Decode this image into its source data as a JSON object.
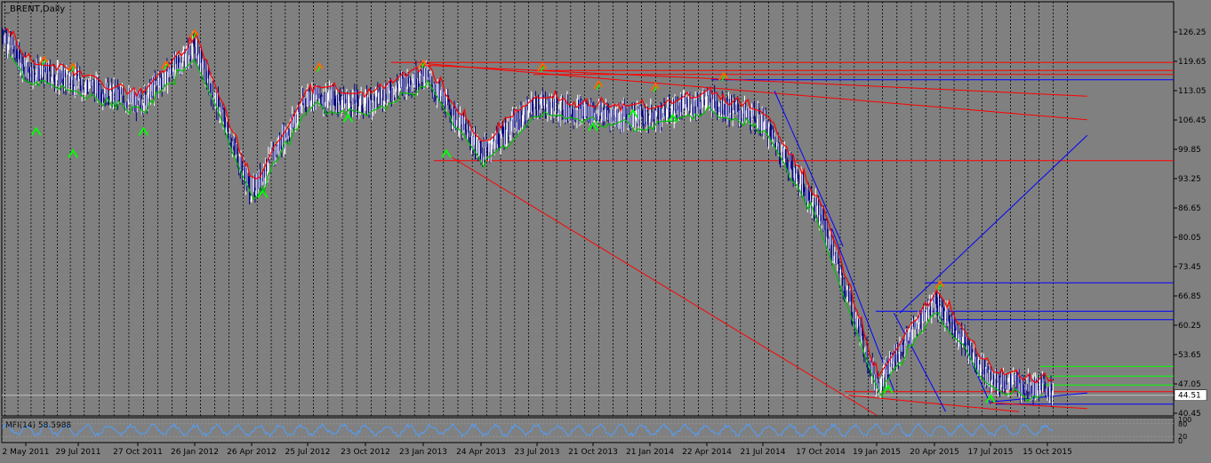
{
  "chart_title": "_BRENT,Daily",
  "mfi_label": "MFI(14) 58.5988",
  "current_price": "44.51",
  "colors": {
    "background": "#808080",
    "up_trend": "#00c000",
    "down_trend": "#ff0000",
    "candles": "#ffffff",
    "candles_dark": "#000080",
    "trendline_blue": "#0000ff",
    "trendline_red": "#ff0000",
    "mfi_line": "#4f9fff"
  },
  "chart_data": {
    "type": "line",
    "title": "_BRENT,Daily",
    "y_ticks": [
      "126.25",
      "119.65",
      "113.05",
      "106.45",
      "99.85",
      "93.25",
      "86.65",
      "80.05",
      "73.45",
      "66.85",
      "60.25",
      "53.65",
      "47.05",
      "40.45"
    ],
    "y_tick_values": [
      126.25,
      119.65,
      113.05,
      106.45,
      99.85,
      93.25,
      86.65,
      80.05,
      73.45,
      66.85,
      60.25,
      53.65,
      47.05,
      40.45
    ],
    "ylim": [
      40.45,
      126.25
    ],
    "x_ticks": [
      "2 May 2011",
      "29 Jul 2011",
      "27 Oct 2011",
      "26 Jan 2012",
      "26 Apr 2012",
      "25 Jul 2012",
      "23 Oct 2012",
      "23 Jan 2013",
      "24 Apr 2013",
      "23 Jul 2013",
      "21 Oct 2013",
      "21 Jan 2014",
      "22 Apr 2014",
      "21 Jul 2014",
      "17 Oct 2014",
      "19 Jan 2015",
      "20 Apr 2015",
      "17 Jul 2015",
      "15 Oct 2015"
    ],
    "mfi_ticks": [
      "100",
      "80",
      "20",
      "0"
    ],
    "mfi_values": [
      100,
      80,
      20,
      0
    ],
    "series": [
      {
        "values": [
          [
            "2 May 2011",
            118
          ],
          [
            "29 Jul 2011",
            115
          ],
          [
            "27 Oct 2011",
            110
          ],
          [
            "26 Jan 2012",
            123
          ],
          [
            "26 Apr 2012",
            90
          ],
          [
            "25 Jul 2012",
            112
          ],
          [
            "23 Oct 2012",
            110
          ],
          [
            "23 Jan 2013",
            117
          ],
          [
            "24 Apr 2013",
            99
          ],
          [
            "23 Jul 2013",
            110
          ],
          [
            "21 Oct 2013",
            108
          ],
          [
            "21 Jan 2014",
            107
          ],
          [
            "22 Apr 2014",
            111
          ],
          [
            "21 Jul 2014",
            106
          ],
          [
            "17 Oct 2014",
            85
          ],
          [
            "19 Jan 2015",
            47
          ],
          [
            "20 Apr 2015",
            66
          ],
          [
            "17 Jul 2015",
            48
          ],
          [
            "15 Oct 2015",
            46
          ]
        ]
      }
    ],
    "horizontal_lines": [
      119.4,
      117.6,
      116.7,
      115.5,
      97.3,
      69.8,
      63.4,
      61.5,
      51.0,
      48.8,
      46.8,
      45.3,
      42.5
    ],
    "current_price_value": 44.51,
    "grid": true
  }
}
